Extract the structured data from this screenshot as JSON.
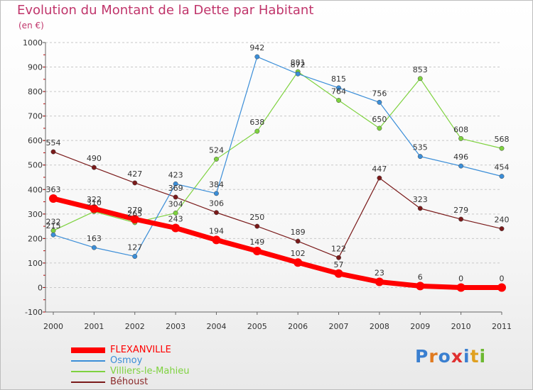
{
  "chart_data": {
    "type": "line",
    "title": "Evolution du Montant de la Dette par Habitant",
    "subtitle": "(en €)",
    "x": [
      "2000",
      "2001",
      "2002",
      "2003",
      "2004",
      "2005",
      "2006",
      "2007",
      "2008",
      "2009",
      "2010",
      "2011"
    ],
    "ylim": [
      -100,
      1000
    ],
    "yticks": [
      -100,
      0,
      100,
      200,
      300,
      400,
      500,
      600,
      700,
      800,
      900,
      1000
    ],
    "grid": "horizontal-dashed",
    "legend_position": "bottom-left",
    "series": [
      {
        "name": "FLEXANVILLE",
        "color": "#ff0000",
        "values": [
          363,
          322,
          279,
          243,
          194,
          149,
          102,
          57,
          23,
          6,
          0,
          0
        ]
      },
      {
        "name": "Osmoy",
        "color": "#3b8ed8",
        "values": [
          215,
          163,
          127,
          423,
          384,
          942,
          872,
          815,
          756,
          535,
          496,
          454
        ]
      },
      {
        "name": "Villiers-le-Mahieu",
        "color": "#7ed23f",
        "values": [
          232,
          310,
          265,
          304,
          524,
          638,
          881,
          764,
          650,
          853,
          608,
          568
        ]
      },
      {
        "name": "Béhoust",
        "color": "#7a1a1a",
        "values": [
          554,
          490,
          427,
          369,
          306,
          250,
          189,
          122,
          447,
          323,
          279,
          240
        ]
      }
    ]
  },
  "logo": {
    "text": "Proxiti",
    "letters": [
      {
        "ch": "P",
        "color": "#3a7fd0"
      },
      {
        "ch": "r",
        "color": "#e07a20"
      },
      {
        "ch": "o",
        "color": "#3a7fd0"
      },
      {
        "ch": "x",
        "color": "#e03030"
      },
      {
        "ch": "i",
        "color": "#3a7fd0"
      },
      {
        "ch": "t",
        "color": "#e0a020"
      },
      {
        "ch": "i",
        "color": "#6cb830"
      }
    ]
  }
}
